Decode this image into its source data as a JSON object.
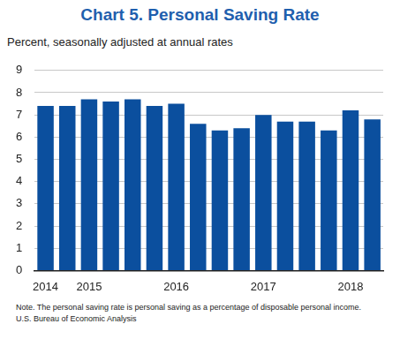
{
  "chart_data": {
    "type": "bar",
    "title": "Chart 5. Personal Saving Rate",
    "subtitle": "Percent, seasonally adjusted at annual rates",
    "annotations": [
      "Note. The personal saving rate is personal saving as a percentage of disposable personal income.",
      "U.S. Bureau of Economic Analysis"
    ],
    "categories": [
      "2014",
      null,
      "2015",
      null,
      null,
      null,
      "2016",
      null,
      null,
      null,
      "2017",
      null,
      null,
      null,
      "2018",
      null
    ],
    "values": [
      7.4,
      7.4,
      7.7,
      7.6,
      7.7,
      7.4,
      7.5,
      6.6,
      6.3,
      6.4,
      7.0,
      6.7,
      6.7,
      6.3,
      7.2,
      6.8
    ],
    "color": "#0b4f9e",
    "ylim": [
      0,
      9
    ],
    "yticks": [
      0,
      1,
      2,
      3,
      4,
      5,
      6,
      7,
      8,
      9
    ],
    "grid": true
  }
}
